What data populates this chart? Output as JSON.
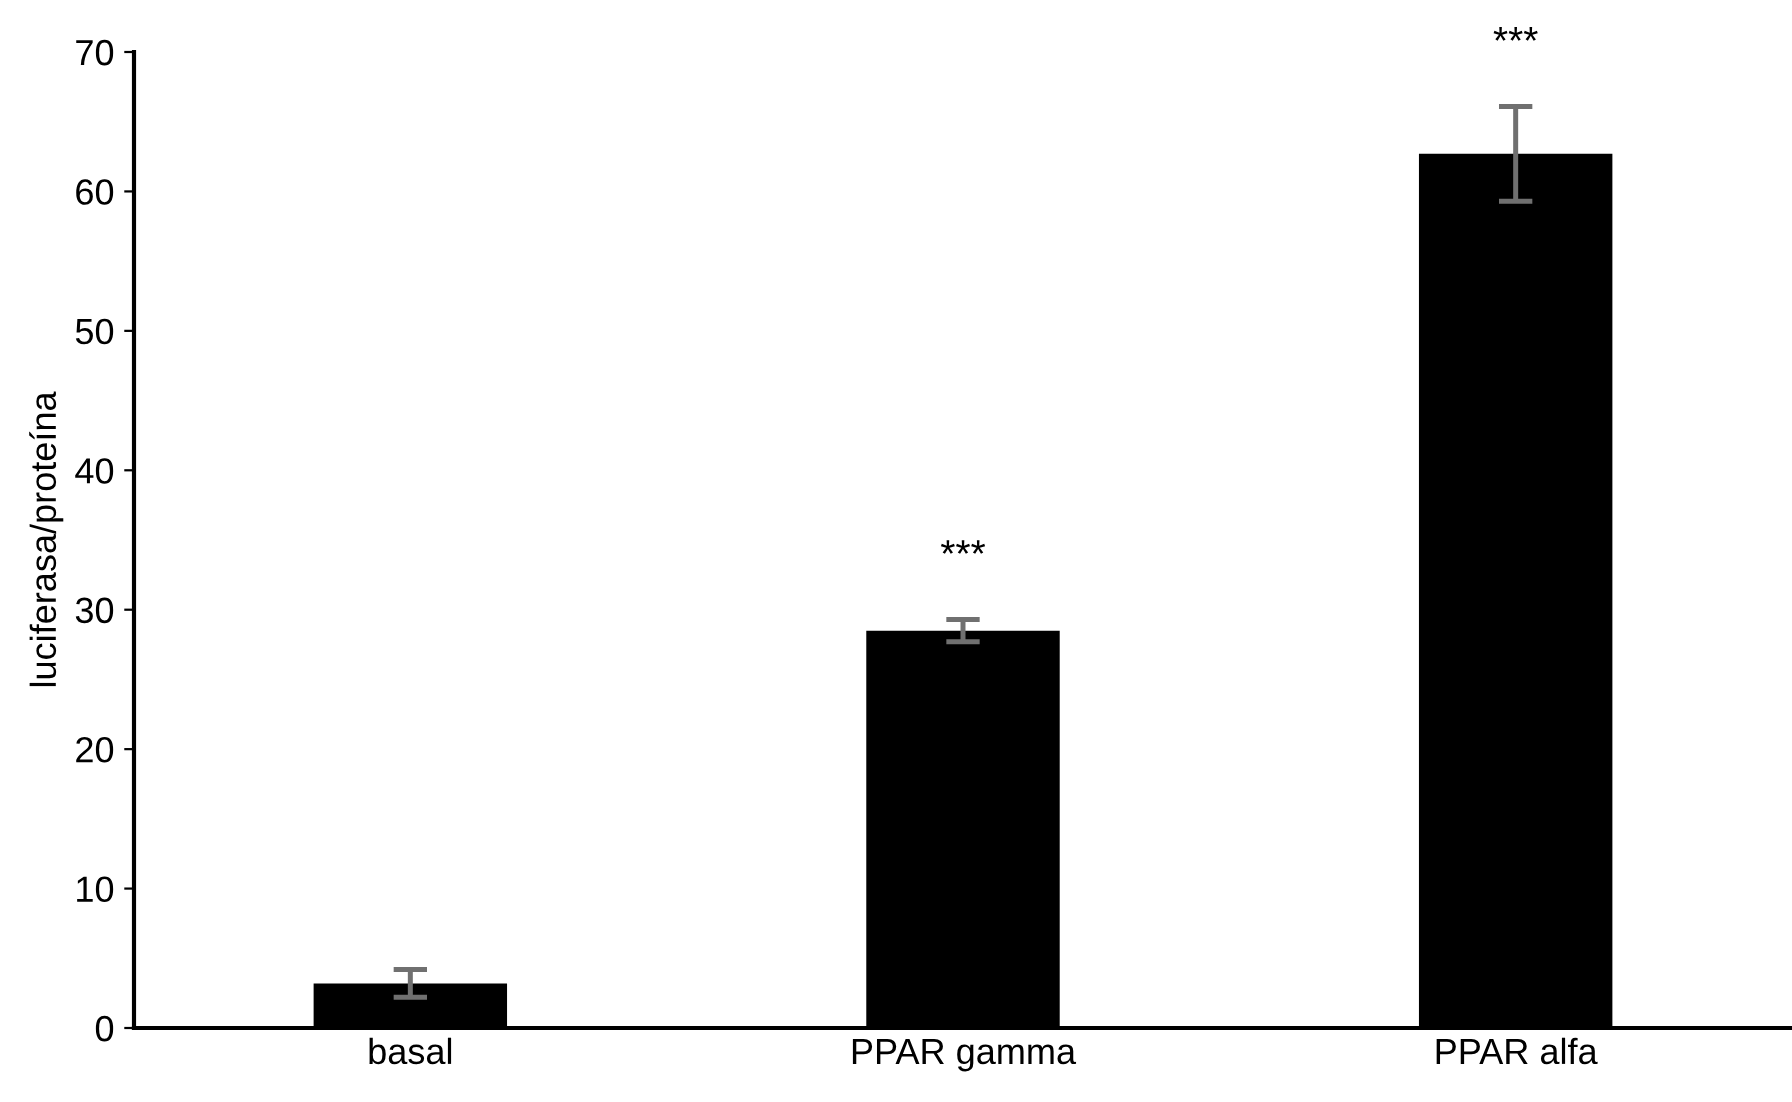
{
  "chart_data": {
    "type": "bar",
    "ylabel": "luciferasa/proteína",
    "categories": [
      "basal",
      "PPAR gamma",
      "PPAR alfa"
    ],
    "values": [
      3.2,
      28.5,
      62.7
    ],
    "errors": [
      1.0,
      0.8,
      3.4
    ],
    "color": "#000000",
    "ylim": [
      0,
      70
    ],
    "yticks": [
      0,
      10,
      20,
      30,
      40,
      50,
      60,
      70
    ],
    "grid": false,
    "annotations": [
      {
        "text": "***",
        "x": "PPAR gamma",
        "y": 28.5
      },
      {
        "text": "***",
        "x": "PPAR alfa",
        "y": 62.7
      }
    ]
  }
}
